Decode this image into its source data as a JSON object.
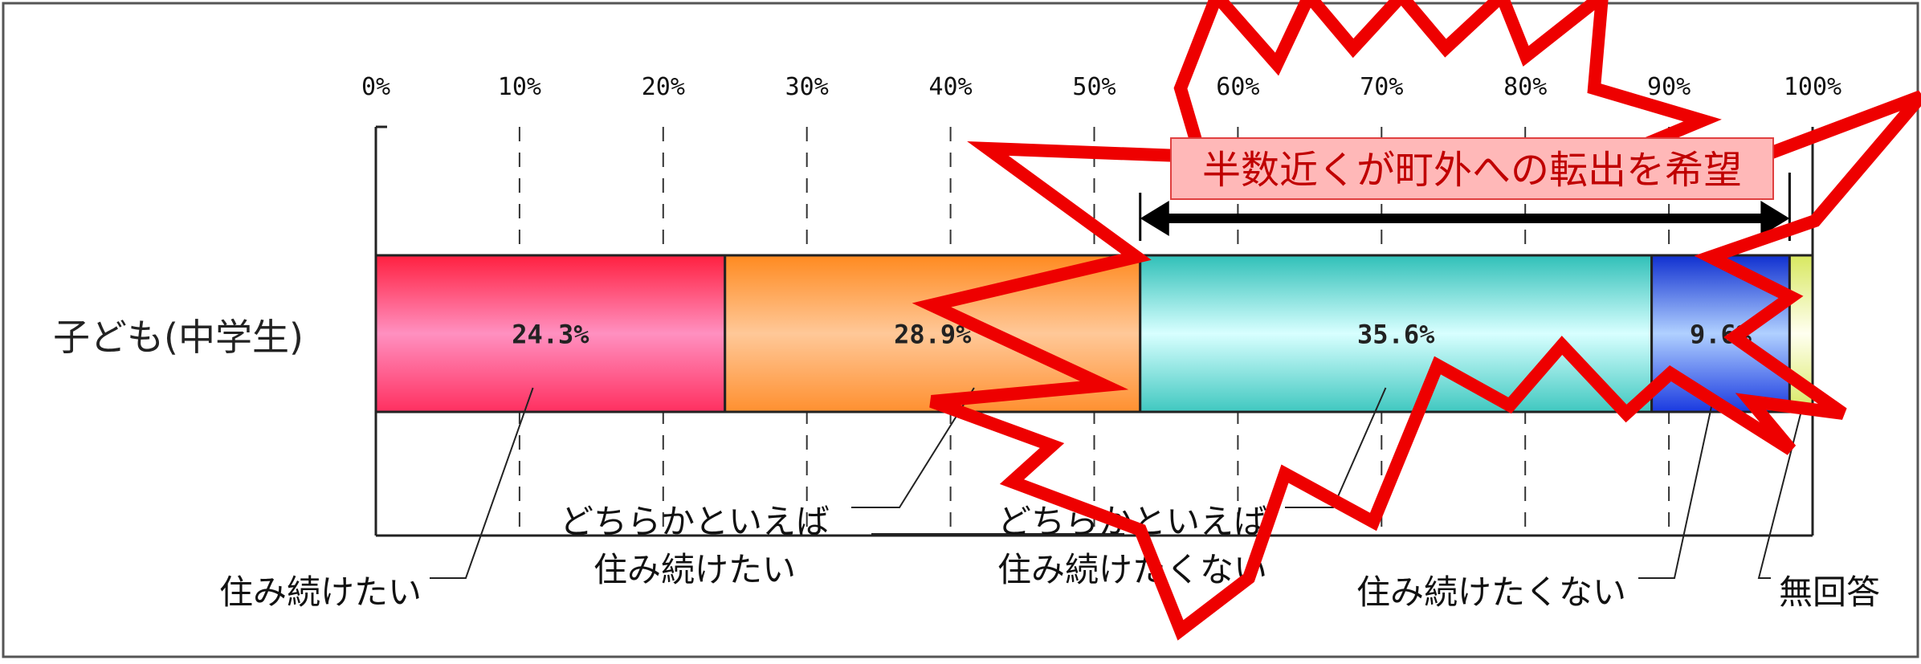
{
  "chart_data": {
    "type": "bar",
    "orientation": "horizontal",
    "stacked": true,
    "percent": true,
    "xlim": [
      0,
      100
    ],
    "x_ticks": [
      "0%",
      "10%",
      "20%",
      "30%",
      "40%",
      "50%",
      "60%",
      "70%",
      "80%",
      "90%",
      "100%"
    ],
    "grid": "dashed-vertical",
    "categories": [
      "子ども(中学生)"
    ],
    "series": [
      {
        "name": "住み続けたい",
        "values": [
          24.3
        ],
        "label": "24.3%",
        "color": "#ff6f9f"
      },
      {
        "name": "どちらかといえば 住み続けたい",
        "values": [
          28.9
        ],
        "label": "28.9%",
        "color": "#ffa040"
      },
      {
        "name": "どちらかといえば 住み続けたくない",
        "values": [
          35.6
        ],
        "label": "35.6%",
        "color": "#58d0d0"
      },
      {
        "name": "住み続けたくない",
        "values": [
          9.6
        ],
        "label": "9.6%",
        "color": "#3a5ae8"
      },
      {
        "name": "無回答",
        "values": [
          1.6
        ],
        "label": "",
        "color": "#e8f080"
      }
    ],
    "annotation": {
      "text": "半数近くが町外への転出を希望",
      "range": [
        53.2,
        98.4
      ]
    },
    "legend_lines": [
      [
        "住み続けたい"
      ],
      [
        "どちらかといえば",
        "住み続けたい"
      ],
      [
        "どちらかといえば",
        "住み続けたくない"
      ],
      [
        "住み続けたくない"
      ],
      [
        "無回答"
      ]
    ],
    "accent_color": "#ee0000"
  }
}
